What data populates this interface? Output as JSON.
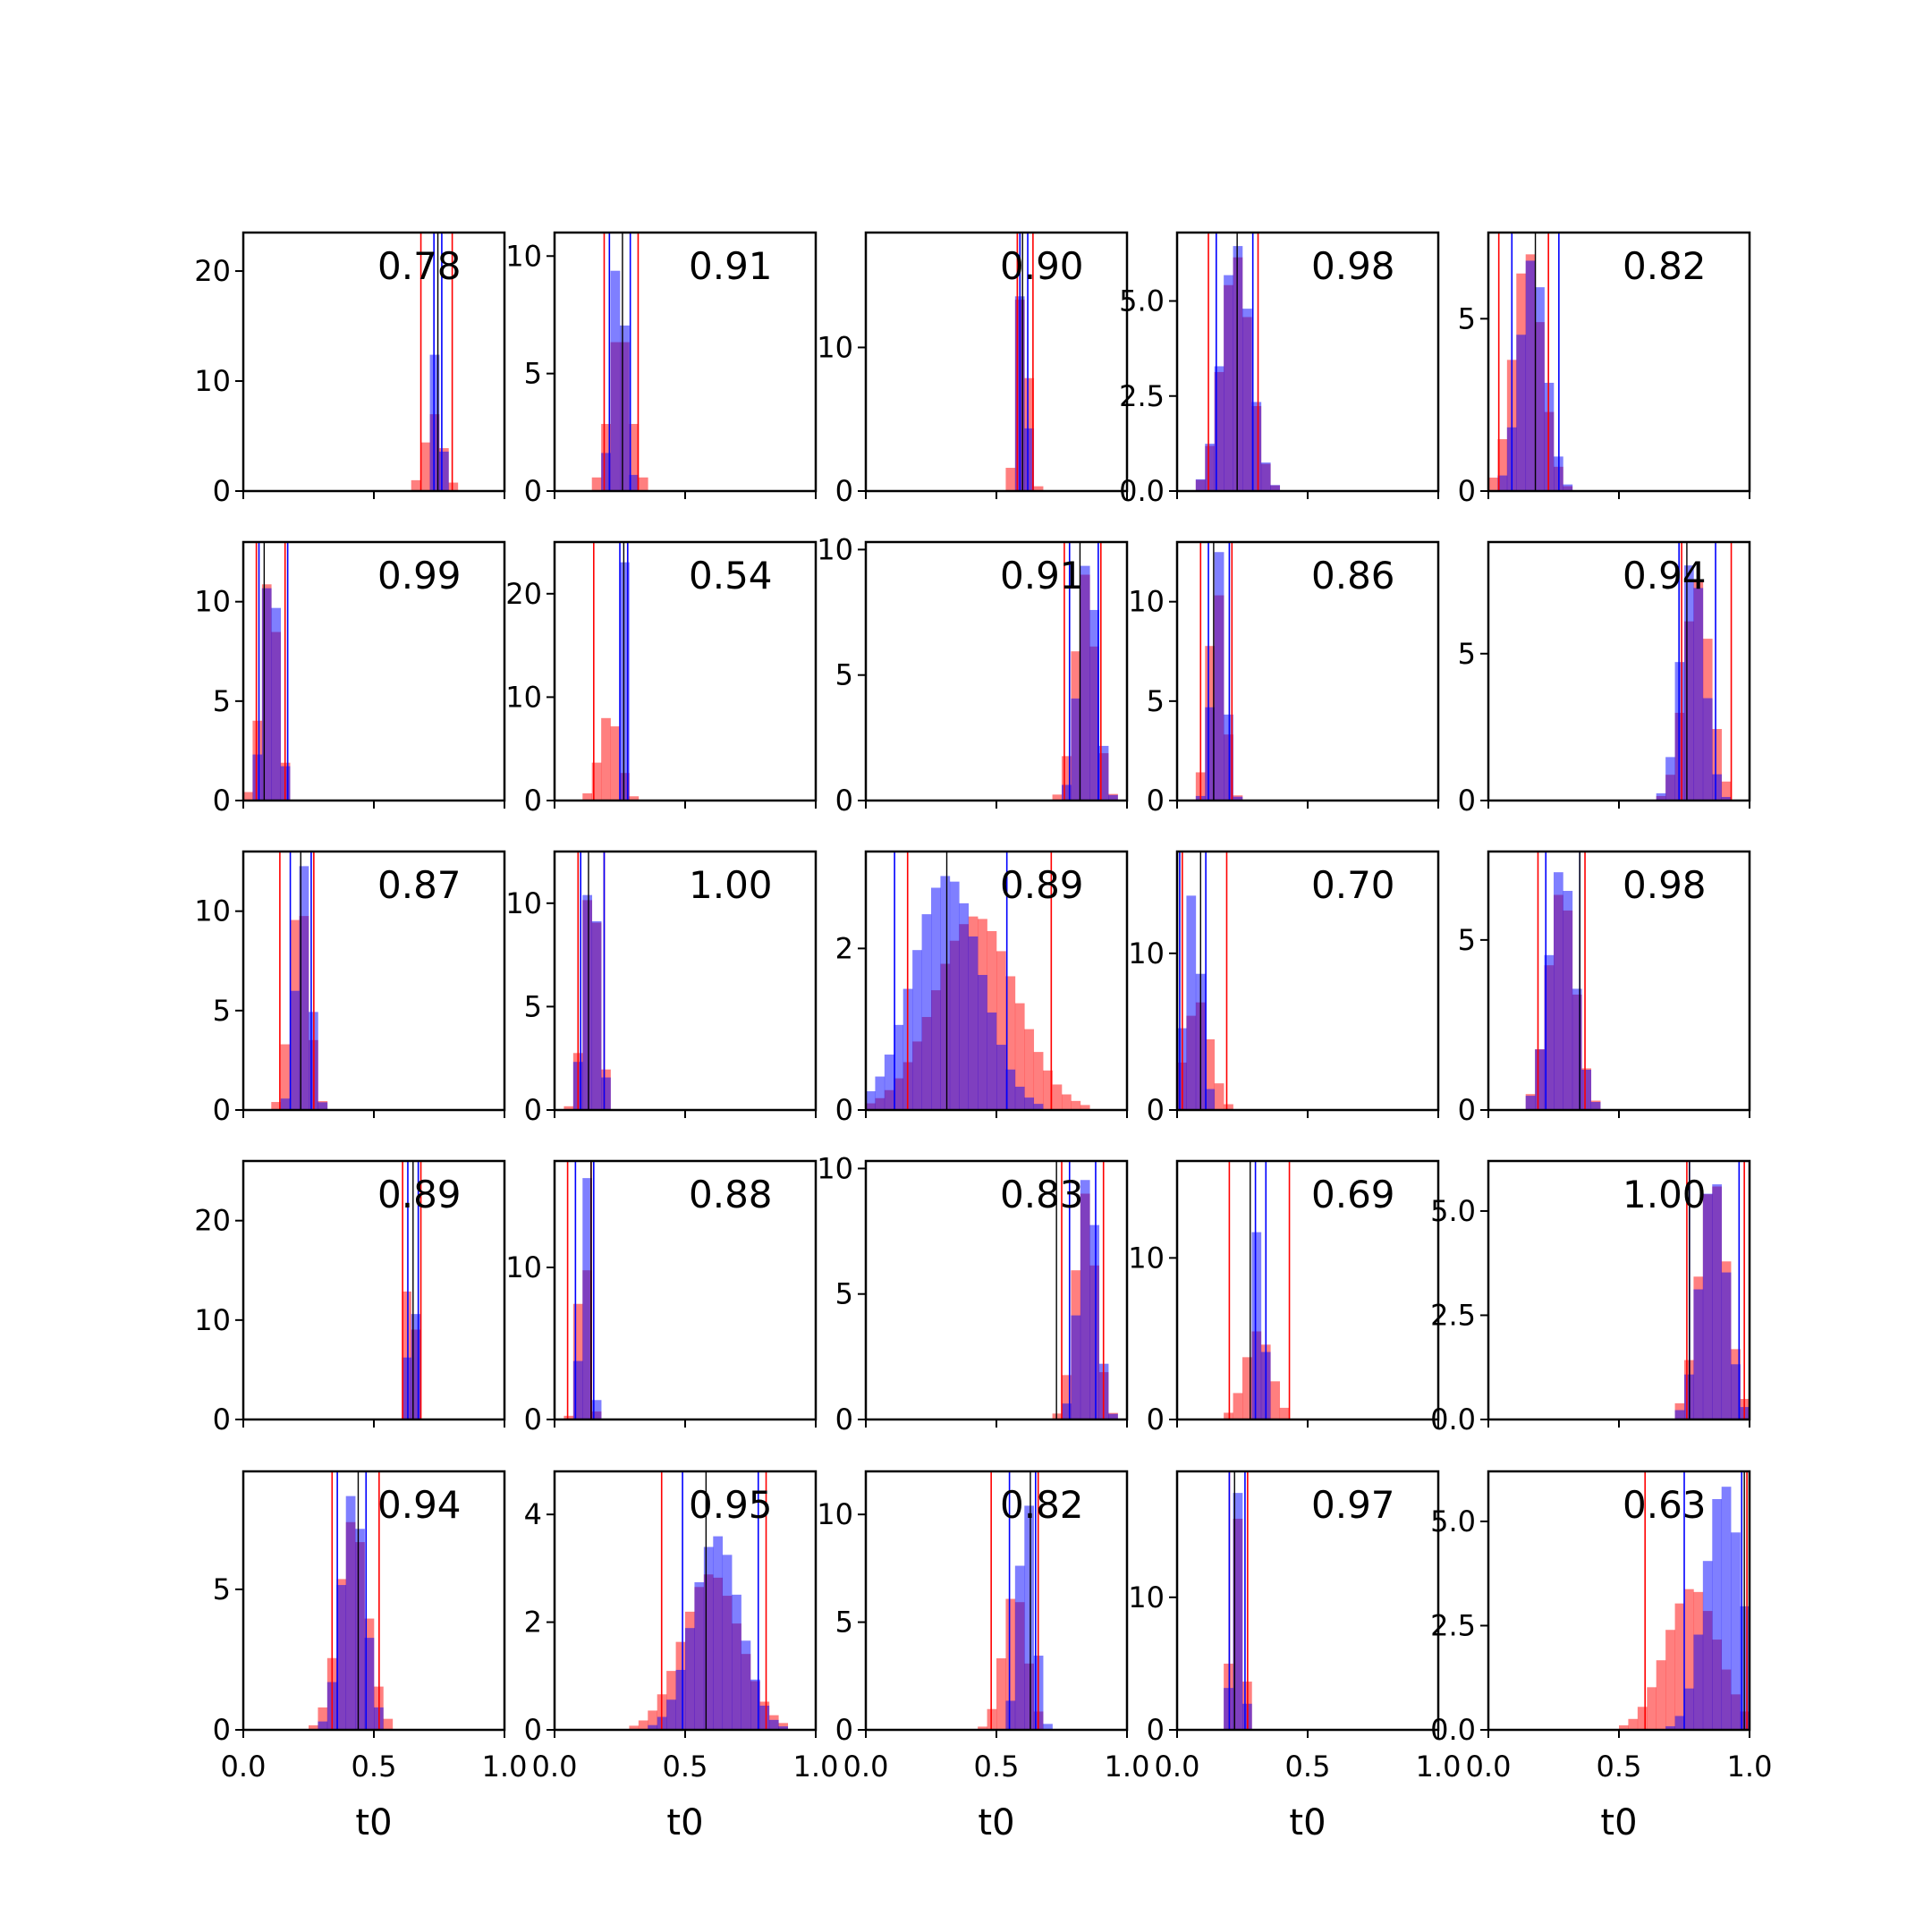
{
  "chart_data": {
    "type": "histogram-grid",
    "rows": 5,
    "cols": 5,
    "xlabel": "t0",
    "xlim": [
      0.0,
      1.0
    ],
    "xtick_labels": [
      "0.0",
      "0.5",
      "1.0"
    ],
    "xticks": [
      0.0,
      0.5,
      1.0
    ],
    "series": [
      {
        "name": "red",
        "color": "#ff0000",
        "opacity": 0.5
      },
      {
        "name": "blue",
        "color": "#0000ff",
        "opacity": 0.5
      }
    ],
    "truth_line_color": "#000000",
    "panels": [
      {
        "score": "0.78",
        "ymax": 23.5,
        "yticks": [
          0,
          10,
          20
        ],
        "ytick_labels": [
          "0",
          "10",
          "20"
        ],
        "red": {
          "mean": 0.73,
          "sd": 0.035,
          "peak": 7,
          "lines": [
            0.68,
            0.8
          ]
        },
        "blue": {
          "mean": 0.745,
          "sd": 0.012,
          "peak": 22,
          "lines": [
            0.73,
            0.76
          ]
        },
        "truth": 0.745
      },
      {
        "score": "0.91",
        "ymax": 11,
        "yticks": [
          0,
          5,
          10
        ],
        "ytick_labels": [
          "0",
          "5",
          "10"
        ],
        "red": {
          "mean": 0.25,
          "sd": 0.04,
          "peak": 7,
          "lines": [
            0.19,
            0.32
          ]
        },
        "blue": {
          "mean": 0.245,
          "sd": 0.025,
          "peak": 10.7,
          "lines": [
            0.21,
            0.29
          ]
        },
        "truth": 0.26
      },
      {
        "score": "0.90",
        "ymax": 18,
        "yticks": [
          0,
          10
        ],
        "ytick_labels": [
          "0",
          "10"
        ],
        "red": {
          "mean": 0.6,
          "sd": 0.022,
          "peak": 15,
          "lines": [
            0.58,
            0.64
          ]
        },
        "blue": {
          "mean": 0.6,
          "sd": 0.015,
          "peak": 17.5,
          "lines": [
            0.59,
            0.62
          ]
        },
        "truth": 0.6
      },
      {
        "score": "0.98",
        "ymax": 6.8,
        "yticks": [
          0,
          2.5,
          5.0
        ],
        "ytick_labels": [
          "0.0",
          "2.5",
          "5.0"
        ],
        "red": {
          "mean": 0.225,
          "sd": 0.055,
          "peak": 6.2,
          "lines": [
            0.12,
            0.31
          ]
        },
        "blue": {
          "mean": 0.225,
          "sd": 0.055,
          "peak": 6.5,
          "lines": [
            0.15,
            0.29
          ]
        },
        "truth": 0.23
      },
      {
        "score": "0.82",
        "ymax": 7.5,
        "yticks": [
          0,
          5
        ],
        "ytick_labels": [
          "0",
          "5"
        ],
        "red": {
          "mean": 0.15,
          "sd": 0.055,
          "peak": 7,
          "lines": [
            0.04,
            0.23
          ]
        },
        "blue": {
          "mean": 0.17,
          "sd": 0.05,
          "peak": 6.8,
          "lines": [
            0.09,
            0.27
          ]
        },
        "truth": 0.18
      },
      {
        "score": "0.99",
        "ymax": 13,
        "yticks": [
          0,
          5,
          10
        ],
        "ytick_labels": [
          "0",
          "5",
          "10"
        ],
        "red": {
          "mean": 0.1,
          "sd": 0.032,
          "peak": 11.5,
          "lines": [
            0.05,
            0.16
          ]
        },
        "blue": {
          "mean": 0.105,
          "sd": 0.028,
          "peak": 12.5,
          "lines": [
            0.06,
            0.17
          ]
        },
        "truth": 0.08
      },
      {
        "score": "0.54",
        "ymax": 25,
        "yticks": [
          0,
          10,
          20
        ],
        "ytick_labels": [
          "0",
          "10",
          "20"
        ],
        "red": {
          "mean": 0.21,
          "sd": 0.038,
          "peak": 8.5,
          "lines": [
            0.15,
            0.28
          ]
        },
        "blue": {
          "mean": 0.265,
          "sd": 0.01,
          "peak": 24,
          "lines": [
            0.25,
            0.28
          ]
        },
        "truth": 0.265
      },
      {
        "score": "0.91",
        "ymax": 10.3,
        "yticks": [
          0,
          5,
          10
        ],
        "ytick_labels": [
          "0",
          "5",
          "10"
        ],
        "red": {
          "mean": 0.84,
          "sd": 0.04,
          "peak": 9,
          "lines": [
            0.76,
            0.9
          ]
        },
        "blue": {
          "mean": 0.85,
          "sd": 0.035,
          "peak": 9.8,
          "lines": [
            0.78,
            0.89
          ]
        },
        "truth": 0.82
      },
      {
        "score": "0.86",
        "ymax": 13,
        "yticks": [
          0,
          5,
          10
        ],
        "ytick_labels": [
          "0",
          "5",
          "10"
        ],
        "red": {
          "mean": 0.15,
          "sd": 0.03,
          "peak": 11,
          "lines": [
            0.09,
            0.21
          ]
        },
        "blue": {
          "mean": 0.16,
          "sd": 0.025,
          "peak": 12.5,
          "lines": [
            0.12,
            0.2
          ]
        },
        "truth": 0.14
      },
      {
        "score": "0.94",
        "ymax": 8.8,
        "yticks": [
          0,
          5
        ],
        "ytick_labels": [
          "0",
          "5"
        ],
        "red": {
          "mean": 0.8,
          "sd": 0.05,
          "peak": 7.5,
          "lines": [
            0.74,
            0.93
          ]
        },
        "blue": {
          "mean": 0.78,
          "sd": 0.045,
          "peak": 8.3,
          "lines": [
            0.73,
            0.87
          ]
        },
        "truth": 0.76
      },
      {
        "score": "0.87",
        "ymax": 13,
        "yticks": [
          0,
          5,
          10
        ],
        "ytick_labels": [
          "0",
          "5",
          "10"
        ],
        "red": {
          "mean": 0.215,
          "sd": 0.035,
          "peak": 11,
          "lines": [
            0.14,
            0.27
          ]
        },
        "blue": {
          "mean": 0.23,
          "sd": 0.028,
          "peak": 12.3,
          "lines": [
            0.18,
            0.26
          ]
        },
        "truth": 0.22
      },
      {
        "score": "1.00",
        "ymax": 12.5,
        "yticks": [
          0,
          5,
          10
        ],
        "ytick_labels": [
          "0",
          "5",
          "10"
        ],
        "red": {
          "mean": 0.14,
          "sd": 0.03,
          "peak": 11.5,
          "lines": [
            0.09,
            0.19
          ]
        },
        "blue": {
          "mean": 0.14,
          "sd": 0.028,
          "peak": 12,
          "lines": [
            0.1,
            0.19
          ]
        },
        "truth": 0.13
      },
      {
        "score": "0.89",
        "ymax": 3.2,
        "yticks": [
          0,
          2
        ],
        "ytick_labels": [
          "0",
          "2"
        ],
        "red": {
          "mean": 0.42,
          "sd": 0.155,
          "peak": 2.4,
          "lines": [
            0.16,
            0.71
          ]
        },
        "blue": {
          "mean": 0.31,
          "sd": 0.13,
          "peak": 2.9,
          "lines": [
            0.11,
            0.54
          ]
        },
        "truth": 0.31
      },
      {
        "score": "0.70",
        "ymax": 16.5,
        "yticks": [
          0,
          10
        ],
        "ytick_labels": [
          "0",
          "10"
        ],
        "red": {
          "mean": 0.08,
          "sd": 0.048,
          "peak": 7,
          "lines": [
            0.02,
            0.19
          ]
        },
        "blue": {
          "mean": 0.06,
          "sd": 0.03,
          "peak": 14,
          "lines": [
            0.01,
            0.11
          ]
        },
        "truth": 0.09
      },
      {
        "score": "0.98",
        "ymax": 7.6,
        "yticks": [
          0,
          5
        ],
        "ytick_labels": [
          "0",
          "5"
        ],
        "red": {
          "mean": 0.28,
          "sd": 0.052,
          "peak": 6.5,
          "lines": [
            0.19,
            0.37
          ]
        },
        "blue": {
          "mean": 0.28,
          "sd": 0.05,
          "peak": 7.2,
          "lines": [
            0.22,
            0.35
          ]
        },
        "truth": 0.35
      },
      {
        "score": "0.89",
        "ymax": 26,
        "yticks": [
          0,
          10,
          20
        ],
        "ytick_labels": [
          "0",
          "10",
          "20"
        ],
        "red": {
          "mean": 0.64,
          "sd": 0.017,
          "peak": 19,
          "lines": [
            0.61,
            0.68
          ]
        },
        "blue": {
          "mean": 0.645,
          "sd": 0.012,
          "peak": 25,
          "lines": [
            0.63,
            0.67
          ]
        },
        "truth": 0.65
      },
      {
        "score": "0.88",
        "ymax": 17,
        "yticks": [
          0,
          10
        ],
        "ytick_labels": [
          "0",
          "10"
        ],
        "red": {
          "mean": 0.11,
          "sd": 0.02,
          "peak": 13,
          "lines": [
            0.05,
            0.14
          ]
        },
        "blue": {
          "mean": 0.12,
          "sd": 0.018,
          "peak": 16.5,
          "lines": [
            0.08,
            0.15
          ]
        },
        "truth": 0.14
      },
      {
        "score": "0.83",
        "ymax": 10.3,
        "yticks": [
          0,
          5,
          10
        ],
        "ytick_labels": [
          "0",
          "5",
          "10"
        ],
        "red": {
          "mean": 0.84,
          "sd": 0.04,
          "peak": 9,
          "lines": [
            0.75,
            0.91
          ]
        },
        "blue": {
          "mean": 0.85,
          "sd": 0.035,
          "peak": 10,
          "lines": [
            0.78,
            0.88
          ]
        },
        "truth": 0.73
      },
      {
        "score": "0.69",
        "ymax": 16,
        "yticks": [
          0,
          10
        ],
        "ytick_labels": [
          "0",
          "10"
        ],
        "red": {
          "mean": 0.31,
          "sd": 0.05,
          "peak": 5.5,
          "lines": [
            0.2,
            0.43
          ]
        },
        "blue": {
          "mean": 0.315,
          "sd": 0.015,
          "peak": 15.5,
          "lines": [
            0.3,
            0.34
          ]
        },
        "truth": 0.28
      },
      {
        "score": "1.00",
        "ymax": 6.2,
        "yticks": [
          0,
          2.5,
          5.0
        ],
        "ytick_labels": [
          "0.0",
          "2.5",
          "5.0"
        ],
        "red": {
          "mean": 0.86,
          "sd": 0.055,
          "peak": 5.8,
          "lines": [
            0.76,
            0.98
          ]
        },
        "blue": {
          "mean": 0.86,
          "sd": 0.05,
          "peak": 5.9,
          "lines": [
            0.77,
            0.96
          ]
        },
        "truth": 0.77
      },
      {
        "score": "0.94",
        "ymax": 9.2,
        "yticks": [
          0,
          5
        ],
        "ytick_labels": [
          "0",
          "5"
        ],
        "red": {
          "mean": 0.42,
          "sd": 0.055,
          "peak": 7.5,
          "lines": [
            0.34,
            0.52
          ]
        },
        "blue": {
          "mean": 0.42,
          "sd": 0.045,
          "peak": 8.5,
          "lines": [
            0.36,
            0.47
          ]
        },
        "truth": 0.44
      },
      {
        "score": "0.95",
        "ymax": 4.8,
        "yticks": [
          0,
          2,
          4
        ],
        "ytick_labels": [
          "0",
          "2",
          "4"
        ],
        "red": {
          "mean": 0.6,
          "sd": 0.11,
          "peak": 2.9,
          "lines": [
            0.41,
            0.81
          ]
        },
        "blue": {
          "mean": 0.62,
          "sd": 0.09,
          "peak": 3.6,
          "lines": [
            0.49,
            0.78
          ]
        },
        "truth": 0.58
      },
      {
        "score": "0.82",
        "ymax": 12,
        "yticks": [
          0,
          5,
          10
        ],
        "ytick_labels": [
          "0",
          "5",
          "10"
        ],
        "red": {
          "mean": 0.57,
          "sd": 0.045,
          "peak": 6.5,
          "lines": [
            0.48,
            0.66
          ]
        },
        "blue": {
          "mean": 0.615,
          "sd": 0.03,
          "peak": 11,
          "lines": [
            0.55,
            0.65
          ]
        },
        "truth": 0.63
      },
      {
        "score": "0.97",
        "ymax": 19.5,
        "yticks": [
          0,
          10
        ],
        "ytick_labels": [
          "0",
          "10"
        ],
        "red": {
          "mean": 0.23,
          "sd": 0.022,
          "peak": 16,
          "lines": [
            0.2,
            0.27
          ]
        },
        "blue": {
          "mean": 0.23,
          "sd": 0.018,
          "peak": 18,
          "lines": [
            0.2,
            0.26
          ]
        },
        "truth": 0.22
      },
      {
        "score": "0.63",
        "ymax": 6.2,
        "yticks": [
          0,
          2.5,
          5.0
        ],
        "ytick_labels": [
          "0.0",
          "2.5",
          "5.0"
        ],
        "red": {
          "mean": 0.78,
          "sd": 0.1,
          "peak": 3.4,
          "lines": [
            0.6,
            0.99
          ]
        },
        "blue": {
          "mean": 0.9,
          "sd": 0.07,
          "peak": 5.9,
          "lines": [
            0.75,
            0.97
          ]
        },
        "truth": 0.98
      }
    ]
  }
}
